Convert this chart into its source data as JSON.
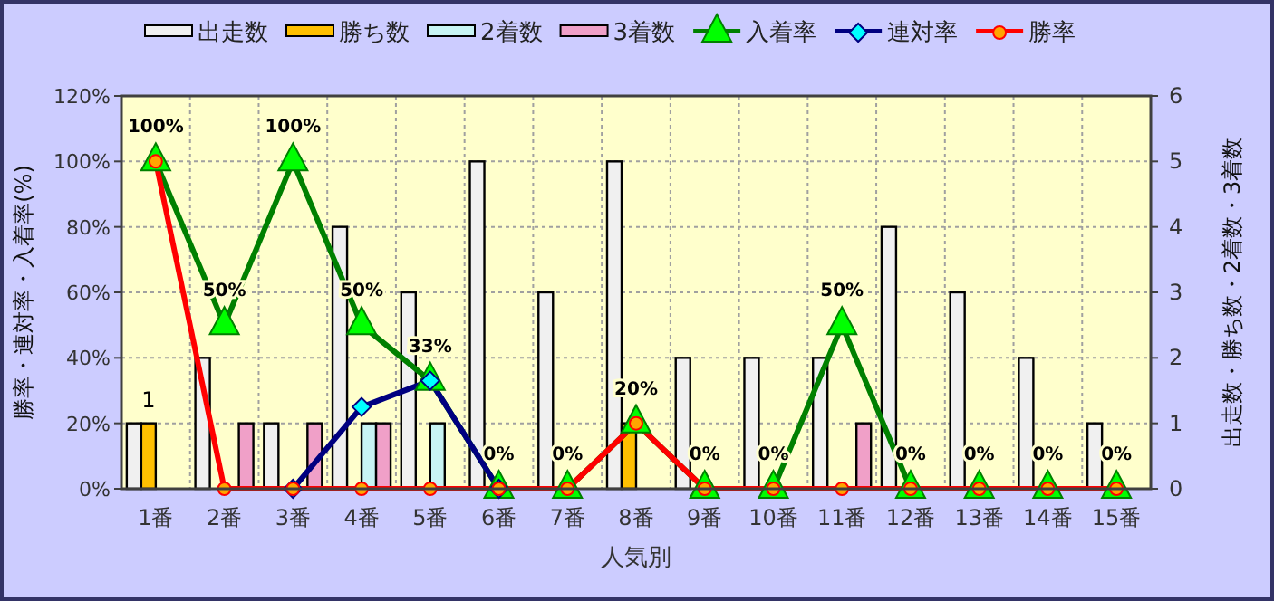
{
  "chart_data": {
    "type": "bar",
    "xlabel": "人気別",
    "ylabel": "勝率・連対率・入着率(%)",
    "y2label": "出走数・勝ち数・2着数・3着数",
    "categories": [
      "1番",
      "2番",
      "3番",
      "4番",
      "5番",
      "6番",
      "7番",
      "8番",
      "9番",
      "10番",
      "11番",
      "12番",
      "13番",
      "14番",
      "15番"
    ],
    "series": [
      {
        "name": "出走数",
        "axis": "y2",
        "color": "#f0f0f0",
        "values": [
          1,
          2,
          1,
          4,
          3,
          5,
          3,
          5,
          2,
          2,
          2,
          4,
          3,
          2,
          1
        ]
      },
      {
        "name": "勝ち数",
        "axis": "y2",
        "color": "#ffc000",
        "values": [
          1,
          0,
          0,
          0,
          0,
          0,
          0,
          1,
          0,
          0,
          0,
          0,
          0,
          0,
          0
        ],
        "value_labels": [
          "1",
          null,
          null,
          null,
          null,
          null,
          null,
          null,
          null,
          null,
          null,
          null,
          null,
          null,
          null
        ]
      },
      {
        "name": "2着数",
        "axis": "y2",
        "color": "#c8f4f4",
        "values": [
          0,
          0,
          0,
          1,
          1,
          0,
          0,
          0,
          0,
          0,
          0,
          0,
          0,
          0,
          0
        ]
      },
      {
        "name": "3着数",
        "axis": "y2",
        "color": "#f0a0c8",
        "values": [
          0,
          1,
          1,
          1,
          0,
          0,
          0,
          0,
          0,
          0,
          1,
          0,
          0,
          0,
          0
        ]
      },
      {
        "name": "入着率",
        "type": "line",
        "color": "#008000",
        "marker": "triangle",
        "values": [
          100,
          50,
          100,
          50,
          33,
          0,
          0,
          20,
          0,
          0,
          50,
          0,
          0,
          0,
          0
        ],
        "value_labels": [
          "100%",
          "50%",
          "100%",
          "50%",
          "33%",
          "0%",
          "0%",
          "20%",
          "0%",
          "0%",
          "50%",
          "0%",
          "0%",
          "0%",
          "0%"
        ]
      },
      {
        "name": "連対率",
        "type": "line",
        "color": "#000080",
        "marker": "diamond",
        "values": [
          null,
          null,
          0,
          25,
          33,
          0,
          null,
          null,
          null,
          null,
          null,
          null,
          null,
          null,
          null
        ]
      },
      {
        "name": "勝率",
        "type": "line",
        "color": "#ff0000",
        "marker": "circle",
        "values": [
          100,
          0,
          0,
          0,
          0,
          0,
          0,
          20,
          0,
          0,
          0,
          0,
          0,
          0,
          0
        ]
      }
    ],
    "ylim": [
      0,
      120
    ],
    "yticks": [
      {
        "value": 0,
        "label": "0%"
      },
      {
        "value": 20,
        "label": "20%"
      },
      {
        "value": 40,
        "label": "40%"
      },
      {
        "value": 60,
        "label": "60%"
      },
      {
        "value": 80,
        "label": "80%"
      },
      {
        "value": 100,
        "label": "100%"
      },
      {
        "value": 120,
        "label": "120%"
      }
    ],
    "y2lim": [
      0,
      6
    ],
    "y2ticks": [
      0,
      1,
      2,
      3,
      4,
      5,
      6
    ],
    "grid": true,
    "legend": "top"
  }
}
